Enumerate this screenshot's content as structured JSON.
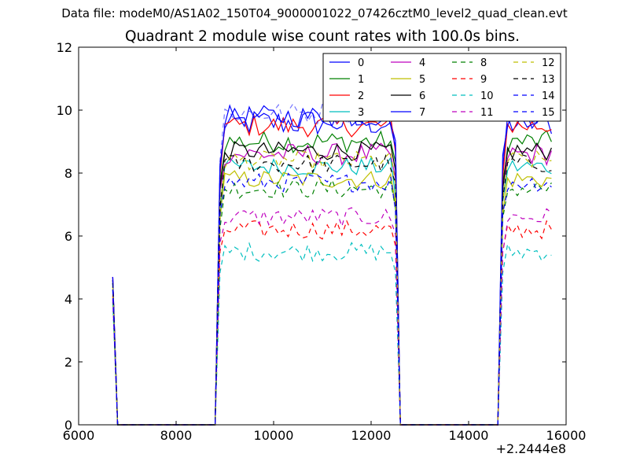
{
  "suptitle": "Data file: modeM0/AS1A02_150T04_9000001022_07426cztM0_level2_quad_clean.evt",
  "chart_data": {
    "type": "line",
    "title": "Quadrant 2 module wise count rates with 100.0s bins.",
    "xlabel": "",
    "ylabel": "",
    "x_offset_label": "+2.2444e8",
    "xlim": [
      6000,
      16000
    ],
    "ylim": [
      0,
      12
    ],
    "xticks": [
      6000,
      8000,
      10000,
      12000,
      14000,
      16000
    ],
    "yticks": [
      0,
      2,
      4,
      6,
      8,
      10,
      12
    ],
    "grid": false,
    "legend": {
      "placement": "top-right",
      "ncol": 4
    },
    "x_start": 6700,
    "x_step": 100,
    "segments": [
      {
        "start": 6700,
        "end": 6800,
        "level": "spike"
      },
      {
        "start": 6900,
        "end": 8800,
        "level": "zero"
      },
      {
        "start": 8900,
        "end": 12500,
        "level": "high"
      },
      {
        "start": 12600,
        "end": 14600,
        "level": "zero"
      },
      {
        "start": 14700,
        "end": 15700,
        "level": "high"
      }
    ],
    "series": [
      {
        "name": "0",
        "color": "#0000ff",
        "dash": "solid",
        "spike": 4.7,
        "mean": 9.6,
        "noise": 0.45
      },
      {
        "name": "1",
        "color": "#008000",
        "dash": "solid",
        "spike": 4.6,
        "mean": 9.0,
        "noise": 0.35
      },
      {
        "name": "2",
        "color": "#ff0000",
        "dash": "solid",
        "spike": 4.7,
        "mean": 9.5,
        "noise": 0.35
      },
      {
        "name": "3",
        "color": "#00bfbf",
        "dash": "solid",
        "spike": 4.5,
        "mean": 8.2,
        "noise": 0.3
      },
      {
        "name": "4",
        "color": "#bf00bf",
        "dash": "solid",
        "spike": 4.6,
        "mean": 8.6,
        "noise": 0.35
      },
      {
        "name": "5",
        "color": "#bfbf00",
        "dash": "solid",
        "spike": 4.4,
        "mean": 7.8,
        "noise": 0.3
      },
      {
        "name": "6",
        "color": "#000000",
        "dash": "solid",
        "spike": 4.6,
        "mean": 8.7,
        "noise": 0.3
      },
      {
        "name": "7",
        "color": "#0000ff",
        "dash": "solid",
        "spike": 4.7,
        "mean": 9.8,
        "noise": 0.35
      },
      {
        "name": "8",
        "color": "#008000",
        "dash": "dashed",
        "spike": 4.3,
        "mean": 7.5,
        "noise": 0.3
      },
      {
        "name": "9",
        "color": "#ff0000",
        "dash": "dashed",
        "spike": 4.1,
        "mean": 6.2,
        "noise": 0.3
      },
      {
        "name": "10",
        "color": "#00bfbf",
        "dash": "dashed",
        "spike": 3.9,
        "mean": 5.5,
        "noise": 0.3
      },
      {
        "name": "11",
        "color": "#bf00bf",
        "dash": "dashed",
        "spike": 4.0,
        "mean": 6.6,
        "noise": 0.3
      },
      {
        "name": "12",
        "color": "#bfbf00",
        "dash": "dashed",
        "spike": 4.4,
        "mean": 8.4,
        "noise": 0.3
      },
      {
        "name": "13",
        "color": "#000000",
        "dash": "dashed",
        "spike": 4.5,
        "mean": 8.3,
        "noise": 0.3
      },
      {
        "name": "14",
        "color": "#0000ff",
        "dash": "dashed",
        "spike": 4.3,
        "mean": 7.7,
        "noise": 0.3
      },
      {
        "name": "15",
        "color": "#0000ff",
        "dash": "dashed",
        "spike": 4.5,
        "mean": 9.9,
        "noise": 0.35
      }
    ]
  }
}
